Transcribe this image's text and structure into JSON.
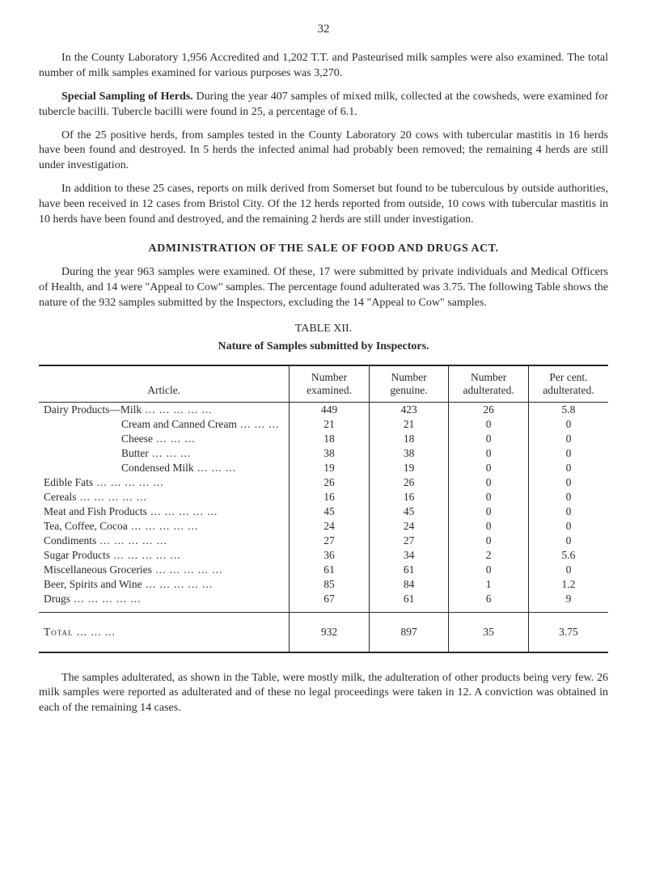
{
  "page_number": "32",
  "paragraphs": {
    "p1": "In the County Laboratory 1,956 Accredited and 1,202 T.T. and Pasteurised milk samples were also examined. The total number of milk samples examined for various purposes was 3,270.",
    "p2a": "Special Sampling of Herds.",
    "p2b": "During the year 407 samples of mixed milk, collected at the cowsheds, were examined for tubercle bacilli. Tubercle bacilli were found in 25, a percentage of 6.1.",
    "p3": "Of the 25 positive herds, from samples tested in the County Laboratory 20 cows with tubercular mastitis in 16 herds have been found and destroyed. In 5 herds the infected animal had probably been removed; the remaining 4 herds are still under investigation.",
    "p4": "In addition to these 25 cases, reports on milk derived from Somerset but found to be tuberculous by outside authorities, have been received in 12 cases from Bristol City. Of the 12 herds reported from outside, 10 cows with tubercular mastitis in 10 herds have been found and destroyed, and the remaining 2 herds are still under investigation."
  },
  "section_heading": "ADMINISTRATION OF THE SALE OF FOOD AND DRUGS ACT.",
  "paragraphs2": {
    "p5": "During the year 963 samples were examined. Of these, 17 were submitted by private individuals and Medical Officers of Health, and 14 were \"Appeal to Cow\" samples. The per­centage found adulterated was 3.75. The following Table shows the nature of the 932 samples submitted by the Inspectors, excluding the 14 \"Appeal to Cow\" samples."
  },
  "table_title": "TABLE XII.",
  "table_caption": "Nature of Samples submitted by Inspectors.",
  "table": {
    "headers": {
      "article": "Article.",
      "examined": "Number examined.",
      "genuine": "Number genuine.",
      "adulterated": "Number adulterated.",
      "percent": "Per cent. adulterated."
    },
    "rows": [
      {
        "label": "Dairy Products—Milk",
        "indent": 0,
        "examined": "449",
        "genuine": "423",
        "adulterated": "26",
        "percent": "5.8"
      },
      {
        "label": "Cream and Canned Cream",
        "indent": 1,
        "examined": "21",
        "genuine": "21",
        "adulterated": "0",
        "percent": "0"
      },
      {
        "label": "Cheese",
        "indent": 1,
        "examined": "18",
        "genuine": "18",
        "adulterated": "0",
        "percent": "0"
      },
      {
        "label": "Butter",
        "indent": 1,
        "examined": "38",
        "genuine": "38",
        "adulterated": "0",
        "percent": "0"
      },
      {
        "label": "Condensed Milk",
        "indent": 1,
        "examined": "19",
        "genuine": "19",
        "adulterated": "0",
        "percent": "0"
      },
      {
        "label": "Edible Fats",
        "indent": 0,
        "examined": "26",
        "genuine": "26",
        "adulterated": "0",
        "percent": "0"
      },
      {
        "label": "Cereals",
        "indent": 0,
        "examined": "16",
        "genuine": "16",
        "adulterated": "0",
        "percent": "0"
      },
      {
        "label": "Meat and Fish Products",
        "indent": 0,
        "examined": "45",
        "genuine": "45",
        "adulterated": "0",
        "percent": "0"
      },
      {
        "label": "Tea, Coffee, Cocoa",
        "indent": 0,
        "examined": "24",
        "genuine": "24",
        "adulterated": "0",
        "percent": "0"
      },
      {
        "label": "Condiments",
        "indent": 0,
        "examined": "27",
        "genuine": "27",
        "adulterated": "0",
        "percent": "0"
      },
      {
        "label": "Sugar Products",
        "indent": 0,
        "examined": "36",
        "genuine": "34",
        "adulterated": "2",
        "percent": "5.6"
      },
      {
        "label": "Miscellaneous Groceries",
        "indent": 0,
        "examined": "61",
        "genuine": "61",
        "adulterated": "0",
        "percent": "0"
      },
      {
        "label": "Beer, Spirits and Wine",
        "indent": 0,
        "examined": "85",
        "genuine": "84",
        "adulterated": "1",
        "percent": "1.2"
      },
      {
        "label": "Drugs",
        "indent": 0,
        "examined": "67",
        "genuine": "61",
        "adulterated": "6",
        "percent": "9"
      }
    ],
    "total": {
      "label": "Total",
      "examined": "932",
      "genuine": "897",
      "adulterated": "35",
      "percent": "3.75"
    }
  },
  "paragraphs3": {
    "p6": "The samples adulterated, as shown in the Table, were mostly milk, the adulteration of other products being very few. 26 milk samples were reported as adulterated and of these no legal proceedings were taken in 12. A conviction was obtained in each of the remaining 14 cases."
  }
}
